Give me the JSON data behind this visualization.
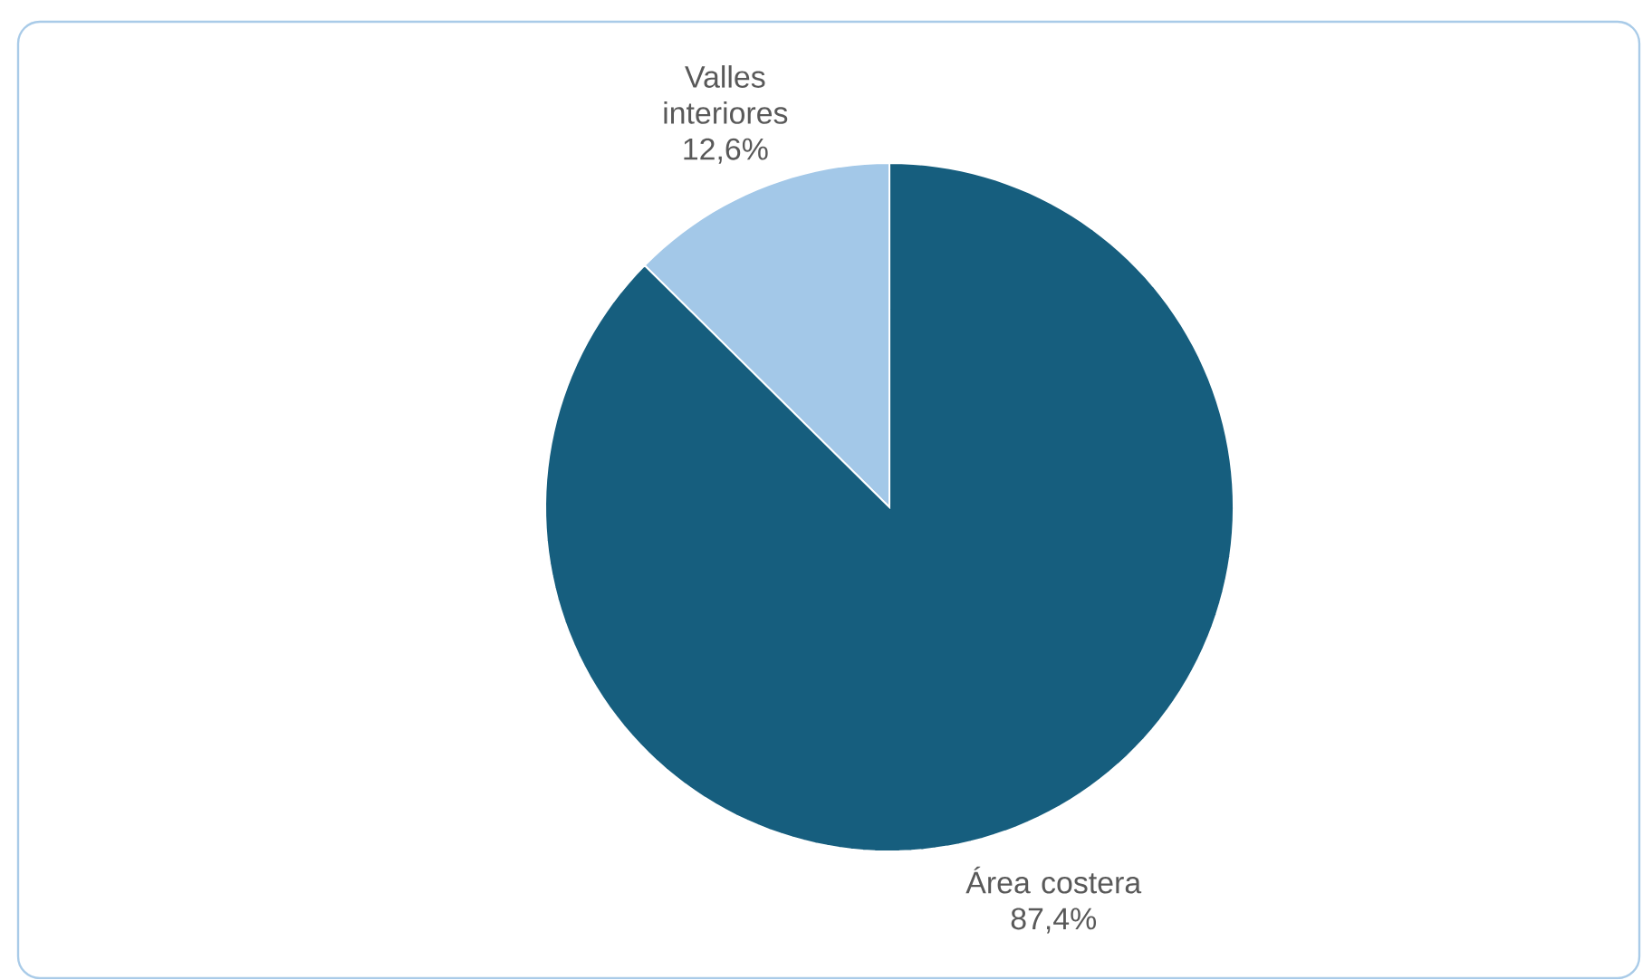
{
  "chart_data": {
    "type": "pie",
    "categories": [
      "Área costera",
      "Valles interiores"
    ],
    "values": [
      87.4,
      12.6
    ],
    "value_labels": [
      "87,4%",
      "12,6%"
    ],
    "colors": [
      "#165e7e",
      "#a3c8e8"
    ]
  }
}
